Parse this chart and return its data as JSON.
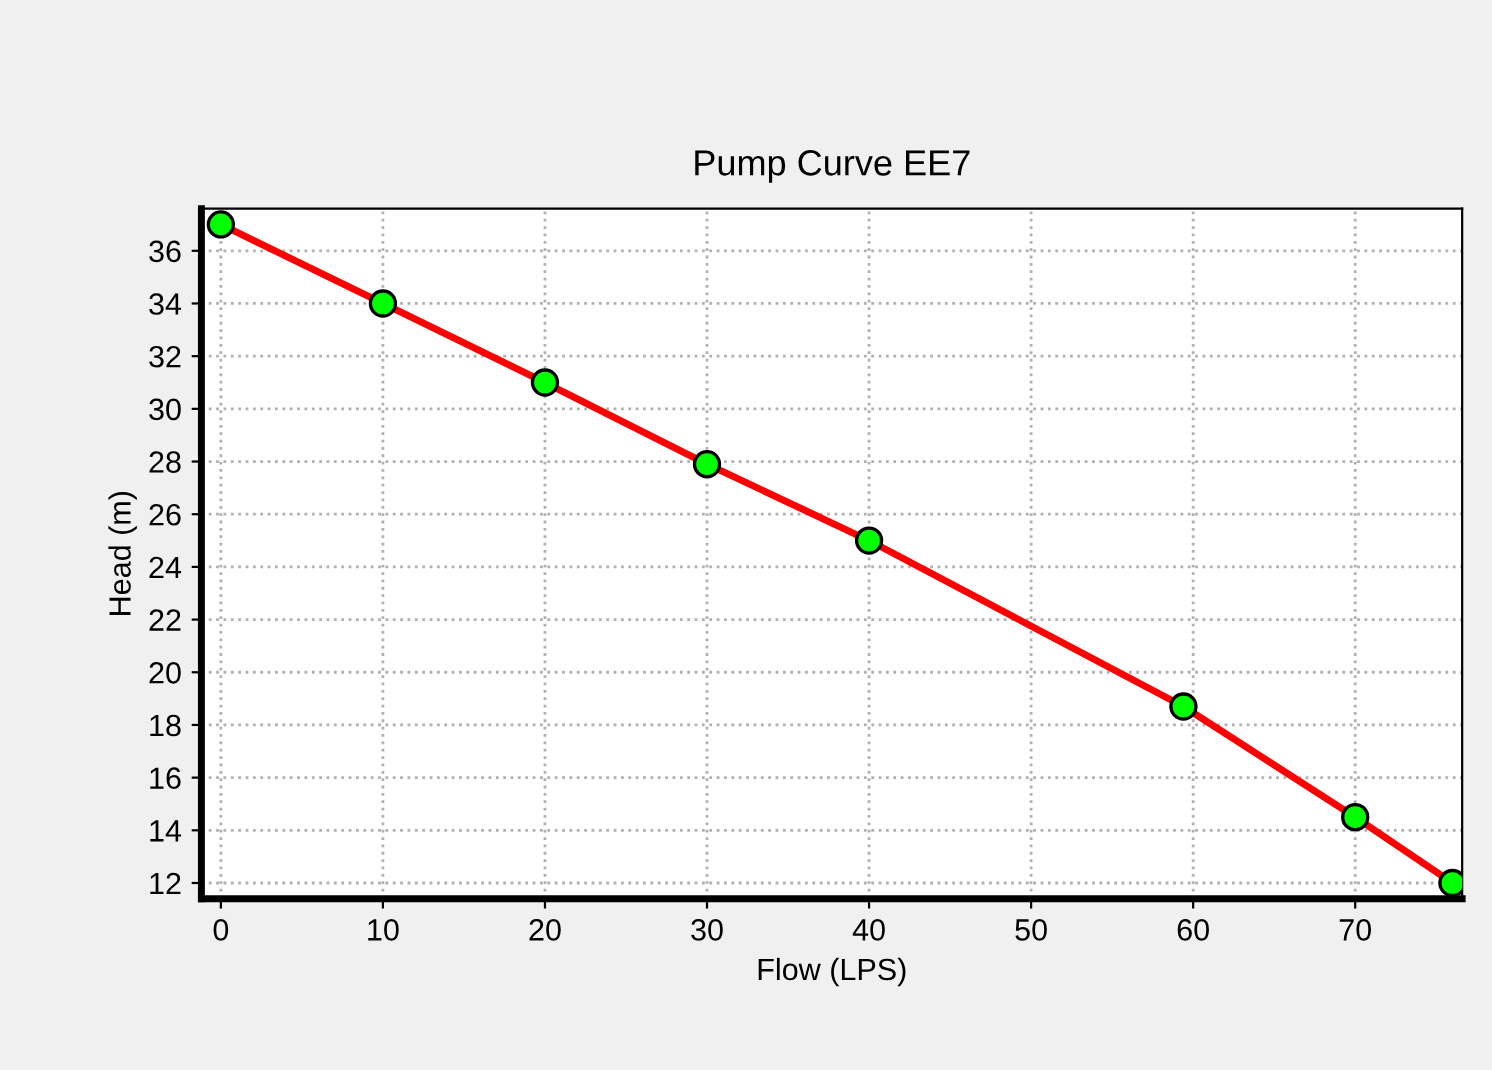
{
  "chart_data": {
    "type": "line",
    "title": "Pump Curve EE7",
    "xlabel": "Flow (LPS)",
    "ylabel": "Head (m)",
    "x": [
      0,
      10,
      20,
      30,
      40,
      59.4,
      70,
      76
    ],
    "series": [
      {
        "color": "#ff0000",
        "values": [
          37,
          34,
          31,
          27.9,
          25,
          18.7,
          14.5,
          12
        ]
      }
    ],
    "marker": "circle",
    "line_style": "solid",
    "xlim": [
      -1.2,
      76.6
    ],
    "ylim": [
      11.4,
      37.6
    ],
    "xticks": [
      0,
      10,
      20,
      30,
      40,
      50,
      60,
      70
    ],
    "yticks": [
      12,
      14,
      16,
      18,
      20,
      22,
      24,
      26,
      28,
      30,
      32,
      34,
      36
    ],
    "grid": true
  }
}
